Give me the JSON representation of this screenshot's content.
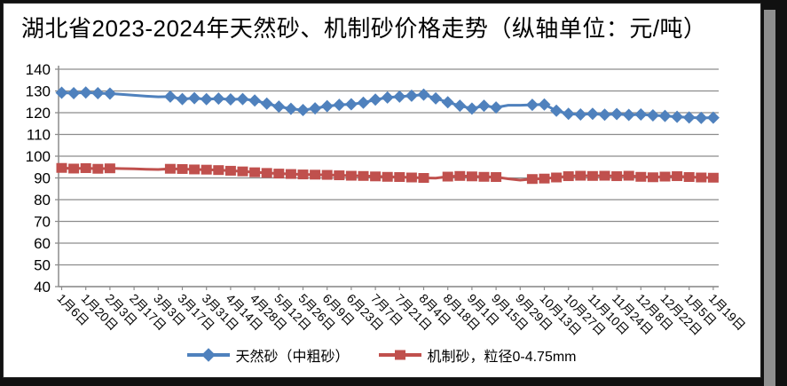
{
  "title": "湖北省2023-2024年天然砂、机制砂价格走势（纵轴单位：元/吨）",
  "colors": {
    "natural_sand": "#4F81BD",
    "machine_sand": "#C0504D",
    "gridline": "#8C8C8C",
    "axis": "#8C8C8C",
    "text": "#000000",
    "background": "#FFFFFF",
    "frame": "#2B2B2B",
    "shadow": "#8F8F8F"
  },
  "legend": [
    {
      "label": "天然砂（中粗砂）",
      "marker": "diamond"
    },
    {
      "label": "机制砂，粒径0-4.75mm",
      "marker": "square"
    }
  ],
  "chart_data": {
    "type": "line",
    "title": "湖北省2023-2024年天然砂、机制砂价格走势（纵轴单位：元/吨）",
    "ylabel": "元/吨",
    "xlabel": "",
    "grid": true,
    "legend_position": "bottom",
    "y_axis": {
      "min": 40,
      "max": 140,
      "step": 10
    },
    "y_tick_labels": [
      140,
      130,
      120,
      110,
      100,
      90,
      80,
      70,
      60,
      50,
      40
    ],
    "x_tick_labels": [
      "1月6日",
      "1月20日",
      "2月3日",
      "2月17日",
      "3月3日",
      "3月17日",
      "3月31日",
      "4月14日",
      "4月28日",
      "5月12日",
      "5月26日",
      "6月9日",
      "6月23日",
      "7月7日",
      "7月21日",
      "8月4日",
      "8月18日",
      "9月1日",
      "9月15日",
      "9月29日",
      "10月13日",
      "10月27日",
      "11月10日",
      "11月24日",
      "12月8日",
      "12月22日",
      "1月5日",
      "1月19日"
    ],
    "points_per_tick": 2,
    "series": [
      {
        "name": "天然砂（中粗砂）",
        "color": "#4F81BD",
        "marker": "diamond",
        "marker_hidden_indices": [
          5,
          6,
          7,
          8,
          37,
          38
        ],
        "values": [
          129.2,
          129.0,
          129.3,
          129.0,
          128.8,
          128.4,
          128.0,
          127.6,
          127.3,
          127.4,
          126.3,
          126.7,
          126.2,
          126.5,
          126.1,
          126.3,
          125.6,
          124.2,
          122.8,
          121.8,
          121.2,
          122.0,
          123.0,
          123.6,
          123.9,
          124.6,
          126.0,
          127.0,
          127.4,
          127.8,
          128.3,
          126.6,
          124.8,
          123.2,
          121.9,
          123.2,
          122.4,
          123.4,
          123.4,
          123.6,
          123.8,
          120.9,
          119.5,
          119.2,
          119.5,
          119.1,
          119.4,
          119.0,
          119.2,
          118.8,
          118.5,
          118.1,
          117.8,
          117.6,
          117.7
        ]
      },
      {
        "name": "机制砂，粒径0-4.75mm",
        "color": "#C0504D",
        "marker": "square",
        "marker_hidden_indices": [
          5,
          6,
          7,
          8,
          31,
          37,
          38
        ],
        "values": [
          94.6,
          94.3,
          94.5,
          94.2,
          94.4,
          94.3,
          94.2,
          94.0,
          93.9,
          94.2,
          94.1,
          93.9,
          93.8,
          93.6,
          93.3,
          93.0,
          92.6,
          92.3,
          92.0,
          91.8,
          91.6,
          91.5,
          91.4,
          91.2,
          91.0,
          90.9,
          90.7,
          90.5,
          90.4,
          90.2,
          90.0,
          89.9,
          90.6,
          90.9,
          90.7,
          90.5,
          90.4,
          89.6,
          89.0,
          89.5,
          89.7,
          90.2,
          90.8,
          91.0,
          90.9,
          91.0,
          90.8,
          91.0,
          90.5,
          90.3,
          90.6,
          90.8,
          90.4,
          90.2,
          90.1
        ]
      }
    ]
  }
}
